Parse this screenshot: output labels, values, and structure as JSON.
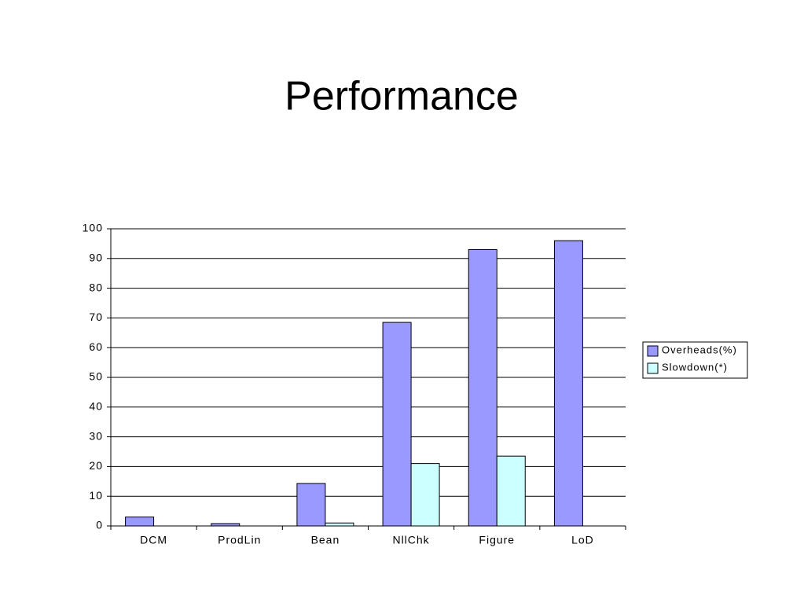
{
  "chart_data": {
    "type": "bar",
    "title": "Performance",
    "categories": [
      "DCM",
      "ProdLin",
      "Bean",
      "NllChk",
      "Figure",
      "LoD"
    ],
    "series": [
      {
        "name": "Overheads(%)",
        "color": "#9999ff",
        "values": [
          3,
          0.8,
          14.3,
          68.5,
          93,
          96
        ]
      },
      {
        "name": "Slowdown(*)",
        "color": "#ccffff",
        "values": [
          0,
          0,
          1,
          21,
          23.5,
          0
        ]
      }
    ],
    "ylim": [
      0,
      100
    ],
    "yticks": [
      0,
      10,
      20,
      30,
      40,
      50,
      60,
      70,
      80,
      90,
      100
    ],
    "grid": true,
    "legend": "right"
  }
}
